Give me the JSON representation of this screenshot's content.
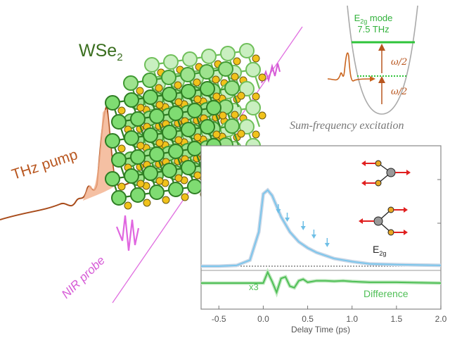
{
  "labels": {
    "material": "WSe",
    "material_sub": "2",
    "pump": "THz pump",
    "probe": "NIR probe",
    "mode_name": "E",
    "mode_sub": "2g",
    "mode_word": " mode",
    "mode_freq": "7.5 THz",
    "half_freq": "ω/2",
    "caption": "Sum-frequency excitation",
    "mode_small": "E",
    "mode_small_sub": "2g",
    "scale": "x3",
    "difference": "Difference"
  },
  "chart_data": {
    "type": "line",
    "xlabel": "Delay Time (ps)",
    "xlim": [
      -0.7,
      2.0
    ],
    "xticks": [
      "-0.5",
      "0.0",
      "0.5",
      "1.0",
      "1.5",
      "2.0"
    ],
    "series": [
      {
        "name": "",
        "color": "#7cc6ec",
        "x": [
          -0.7,
          -0.5,
          -0.3,
          -0.15,
          -0.05,
          0.0,
          0.05,
          0.1,
          0.2,
          0.3,
          0.4,
          0.5,
          0.6,
          0.7,
          0.8,
          1.0,
          1.2,
          1.5,
          2.0
        ],
        "y": [
          0,
          0,
          0.01,
          0.08,
          0.45,
          0.95,
          1.0,
          0.93,
          0.65,
          0.45,
          0.32,
          0.24,
          0.18,
          0.14,
          0.1,
          0.06,
          0.03,
          0.02,
          0.01
        ]
      },
      {
        "name": "Difference",
        "color": "#4fbf56",
        "x": [
          -0.7,
          0.0,
          0.05,
          0.1,
          0.15,
          0.2,
          0.25,
          0.3,
          0.35,
          0.4,
          0.45,
          0.5,
          0.6,
          0.7,
          0.8,
          0.9,
          1.0,
          1.2,
          1.5,
          2.0
        ],
        "y": [
          0,
          0,
          0.7,
          0.1,
          -0.6,
          0.3,
          0.4,
          -0.2,
          -0.3,
          0.15,
          0.25,
          0.05,
          0.15,
          0.15,
          0.12,
          0.15,
          0.1,
          0.05,
          0.05,
          0.0
        ]
      }
    ],
    "markers_x": [
      0.17,
      0.27,
      0.45,
      0.57,
      0.72
    ]
  }
}
